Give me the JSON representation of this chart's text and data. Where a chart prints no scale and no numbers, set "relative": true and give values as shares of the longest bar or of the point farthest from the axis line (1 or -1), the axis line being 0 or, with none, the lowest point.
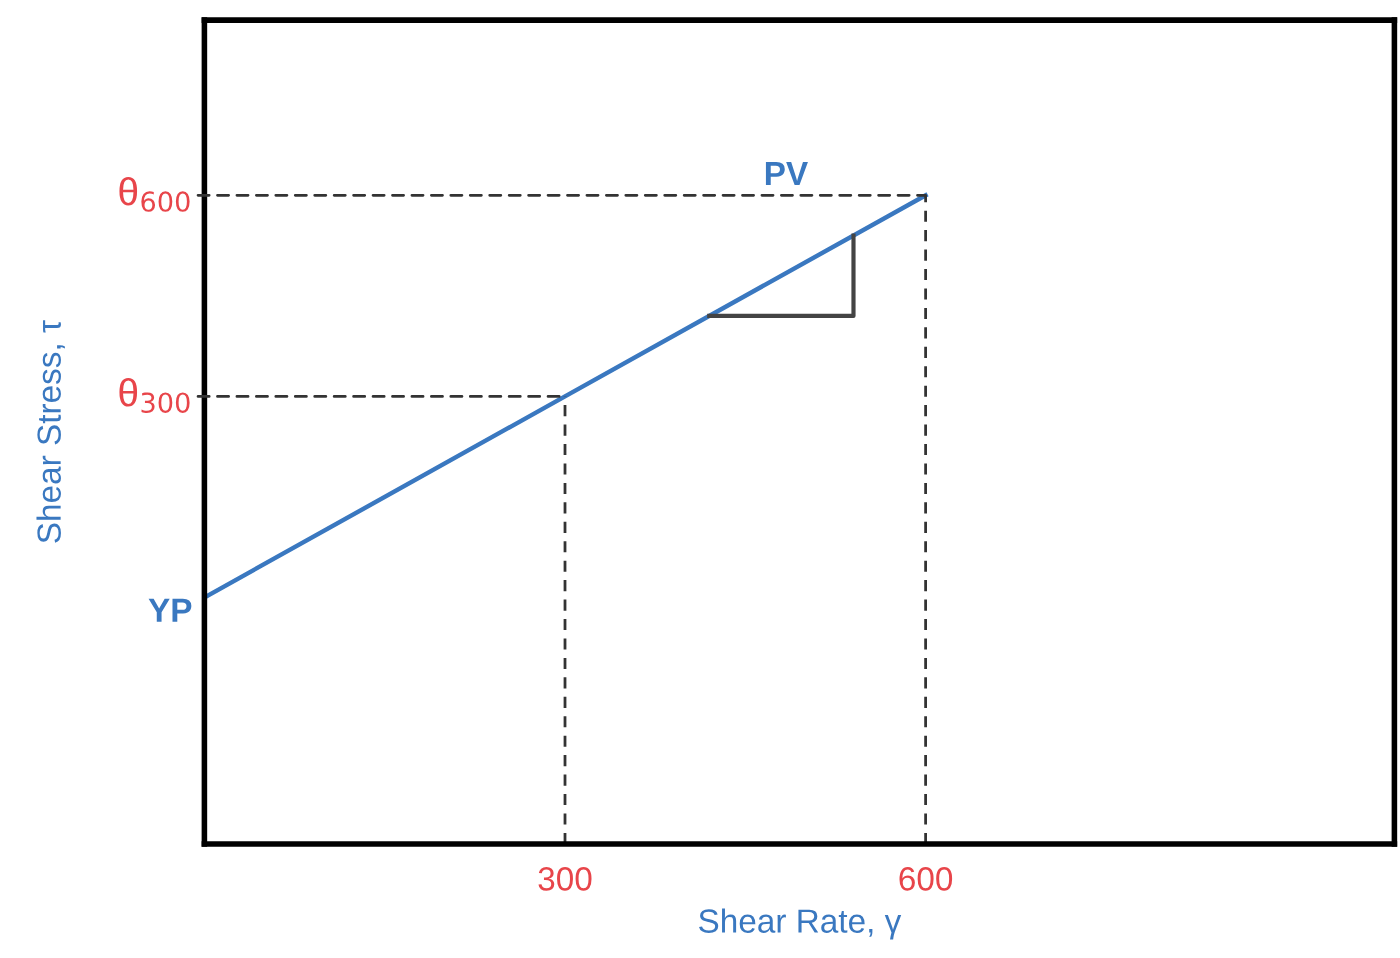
{
  "chart_data": {
    "type": "line",
    "relative": true,
    "xlabel": "Shear Rate, γ",
    "ylabel": "Shear Stress, τ",
    "x": [
      0,
      300,
      600
    ],
    "xlim": [
      0,
      990
    ],
    "xticks": [
      300,
      600
    ],
    "series": [
      {
        "color": "#3a78c0",
        "values": [
          0.38,
          0.69,
          1
        ]
      }
    ],
    "ref_lines": [
      {
        "axis": "x",
        "value": 300,
        "color": "#333333",
        "line_style": "dashed"
      },
      {
        "axis": "x",
        "value": 600,
        "color": "#333333",
        "line_style": "dashed"
      }
    ],
    "marker": "none",
    "line_style": "solid",
    "grid": false,
    "annotations": [
      {
        "text": "θ$_{600}$",
        "x": 600,
        "y": 1
      },
      {
        "text": "θ$_{300}$",
        "x": 300,
        "y": 0.69
      },
      {
        "text": "YP",
        "x": 0,
        "y": 0.38
      },
      "PV"
    ]
  }
}
